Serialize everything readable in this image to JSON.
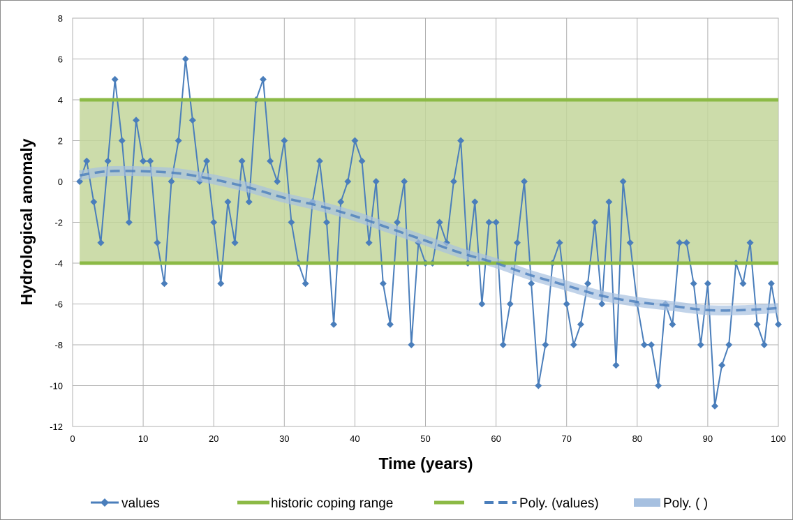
{
  "chart_data": {
    "type": "line",
    "xlabel": "Time (years)",
    "ylabel": "Hydrological anomaly",
    "xlim": [
      0,
      100
    ],
    "ylim": [
      -12,
      8
    ],
    "x_ticks": [
      "0",
      "10",
      "20",
      "30",
      "40",
      "50",
      "60",
      "70",
      "80",
      "90",
      "100"
    ],
    "y_ticks": [
      "-12",
      "-10",
      "-8",
      "-6",
      "-4",
      "-2",
      "0",
      "2",
      "4",
      "6",
      "8"
    ],
    "grid": true,
    "legend_position": "bottom",
    "colors": {
      "values": "#4a7ebb",
      "coping_range_fill": "#c3d69b",
      "coping_range_line": "#8cba46",
      "poly_values": "#4a7ebb",
      "poly_band": "#a6c0e0"
    },
    "coping_range": {
      "upper": 4,
      "lower": -4
    },
    "series": [
      {
        "name": "values",
        "x": [
          1,
          2,
          3,
          4,
          5,
          6,
          7,
          8,
          9,
          10,
          11,
          12,
          13,
          14,
          15,
          16,
          17,
          18,
          19,
          20,
          21,
          22,
          23,
          24,
          25,
          26,
          27,
          28,
          29,
          30,
          31,
          32,
          33,
          34,
          35,
          36,
          37,
          38,
          39,
          40,
          41,
          42,
          43,
          44,
          45,
          46,
          47,
          48,
          49,
          50,
          51,
          52,
          53,
          54,
          55,
          56,
          57,
          58,
          59,
          60,
          61,
          62,
          63,
          64,
          65,
          66,
          67,
          68,
          69,
          70,
          71,
          72,
          73,
          74,
          75,
          76,
          77,
          78,
          79,
          80,
          81,
          82,
          83,
          84,
          85,
          86,
          87,
          88,
          89,
          90,
          91,
          92,
          93,
          94,
          95,
          96,
          97,
          98,
          99,
          100
        ],
        "y": [
          0,
          1,
          -1,
          -3,
          1,
          5,
          2,
          -2,
          3,
          1,
          1,
          -3,
          -5,
          0,
          2,
          6,
          3,
          0,
          1,
          -2,
          -5,
          -1,
          -3,
          1,
          -1,
          4,
          5,
          1,
          0,
          2,
          -2,
          -4,
          -5,
          -1,
          1,
          -2,
          -7,
          -1,
          0,
          2,
          1,
          -3,
          0,
          -5,
          -7,
          -2,
          0,
          -8,
          -3,
          -4,
          -4,
          -2,
          -3,
          0,
          2,
          -4,
          -1,
          -6,
          -2,
          -2,
          -8,
          -6,
          -3,
          0,
          -5,
          -10,
          -8,
          -4,
          -3,
          -6,
          -8,
          -7,
          -5,
          -2,
          -6,
          -1,
          -9,
          0,
          -3,
          -6,
          -8,
          -8,
          -10,
          -6,
          -7,
          -3,
          -3,
          -5,
          -8,
          -5,
          -11,
          -9,
          -8,
          -4,
          -5,
          -3,
          -7,
          -8,
          -5,
          -7
        ]
      },
      {
        "name": "historic coping range",
        "values": [
          4
        ]
      },
      {
        "name": "",
        "values": [
          -4
        ]
      },
      {
        "name": "Poly. (values)",
        "x": [
          1,
          5,
          10,
          15,
          20,
          25,
          30,
          35,
          40,
          45,
          50,
          55,
          60,
          65,
          70,
          75,
          80,
          85,
          90,
          95,
          100
        ],
        "y": [
          0.3,
          0.5,
          0.5,
          0.4,
          0.1,
          -0.3,
          -0.8,
          -1.2,
          -1.7,
          -2.3,
          -2.9,
          -3.5,
          -4.0,
          -4.6,
          -5.1,
          -5.6,
          -5.9,
          -6.1,
          -6.3,
          -6.3,
          -6.2
        ]
      },
      {
        "name": "Poly. ( )",
        "x": [
          1,
          5,
          10,
          15,
          20,
          25,
          30,
          35,
          40,
          45,
          50,
          55,
          60,
          65,
          70,
          75,
          80,
          85,
          90,
          95,
          100
        ],
        "y": [
          0.3,
          0.5,
          0.5,
          0.4,
          0.1,
          -0.3,
          -0.8,
          -1.2,
          -1.7,
          -2.3,
          -2.9,
          -3.5,
          -4.0,
          -4.6,
          -5.1,
          -5.6,
          -5.9,
          -6.1,
          -6.3,
          -6.3,
          -6.2
        ]
      }
    ]
  },
  "legend": {
    "values_label": "values",
    "coping_label": "historic coping range",
    "poly_values_label": "Poly. (values)",
    "poly_band_label": "Poly. ( )"
  }
}
